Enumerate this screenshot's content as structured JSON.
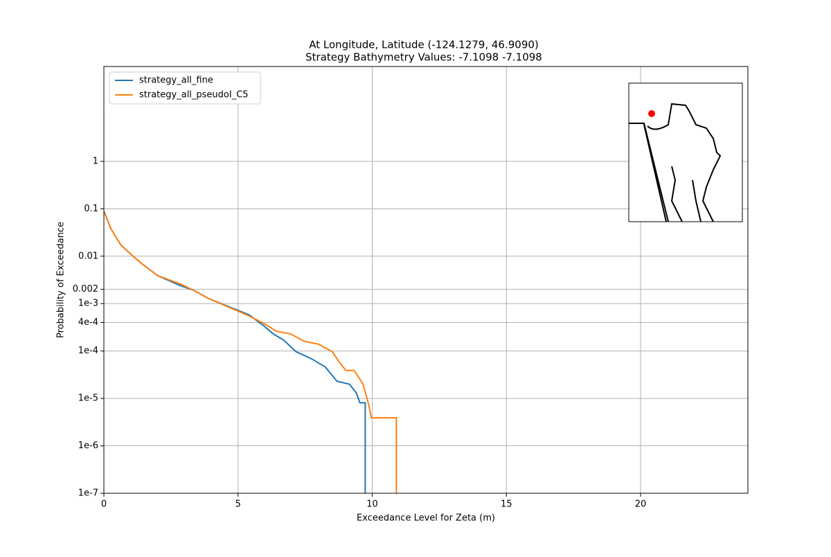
{
  "chart_data": {
    "type": "line",
    "title": "At Longitude, Latitude (-124.1279,  46.9090)",
    "subtitle": "Strategy Bathymetry Values:   -7.1098   -7.1098",
    "x_label": "Exceedance Level for Zeta (m)",
    "y_label": "Probability of Exceedance",
    "log_y": true,
    "grid": true,
    "legend": "upper left",
    "xlim": [
      0,
      24
    ],
    "xticks": [
      0,
      5,
      10,
      15,
      20
    ],
    "ylim": [
      1e-07,
      100
    ],
    "yticks": [
      {
        "value": 1e-07,
        "label": "1e-7"
      },
      {
        "value": 1e-06,
        "label": "1e-6"
      },
      {
        "value": 1e-05,
        "label": "1e-5"
      },
      {
        "value": 0.0001,
        "label": "1e-4"
      },
      {
        "value": 0.0004,
        "label": "4e-4"
      },
      {
        "value": 0.001,
        "label": "1e-3"
      },
      0.002,
      0.01,
      0.1,
      1
    ],
    "series": [
      {
        "name": "strategy_all_fine",
        "color": "#1f77b4",
        "x": [
          0,
          0.26,
          0.64,
          1.03,
          1.42,
          2.0,
          2.84,
          3.35,
          3.87,
          4.64,
          5.41,
          5.93,
          6.31,
          6.7,
          7.16,
          7.73,
          8.25,
          8.69,
          9.15,
          9.41,
          9.54,
          9.74,
          9.74
        ],
        "values": [
          0.089,
          0.038,
          0.017,
          0.0107,
          0.0069,
          0.0039,
          0.0024,
          0.0019,
          0.0013,
          0.00087,
          0.00058,
          0.00035,
          0.00023,
          0.00017,
          9.7e-05,
          6.9e-05,
          4.6e-05,
          2.3e-05,
          2e-05,
          1.3e-05,
          8.1e-06,
          8.1e-06,
          1e-07
        ]
      },
      {
        "name": "strategy_all_pseudoI_C5",
        "color": "#ff7f0e",
        "x": [
          0,
          0.26,
          0.64,
          1.03,
          1.42,
          2.0,
          2.84,
          3.35,
          3.87,
          4.64,
          5.41,
          5.93,
          6.44,
          6.96,
          7.47,
          7.99,
          8.51,
          8.76,
          9.02,
          9.33,
          9.66,
          9.85,
          9.97,
          10.9,
          10.9
        ],
        "values": [
          0.089,
          0.038,
          0.017,
          0.0107,
          0.0069,
          0.0039,
          0.0026,
          0.0019,
          0.0013,
          0.00085,
          0.00055,
          0.00039,
          0.00026,
          0.00023,
          0.00016,
          0.00014,
          9.7e-05,
          6e-05,
          3.9e-05,
          3.9e-05,
          2e-05,
          8.1e-06,
          3.9e-06,
          3.9e-06,
          1e-07
        ]
      }
    ]
  }
}
